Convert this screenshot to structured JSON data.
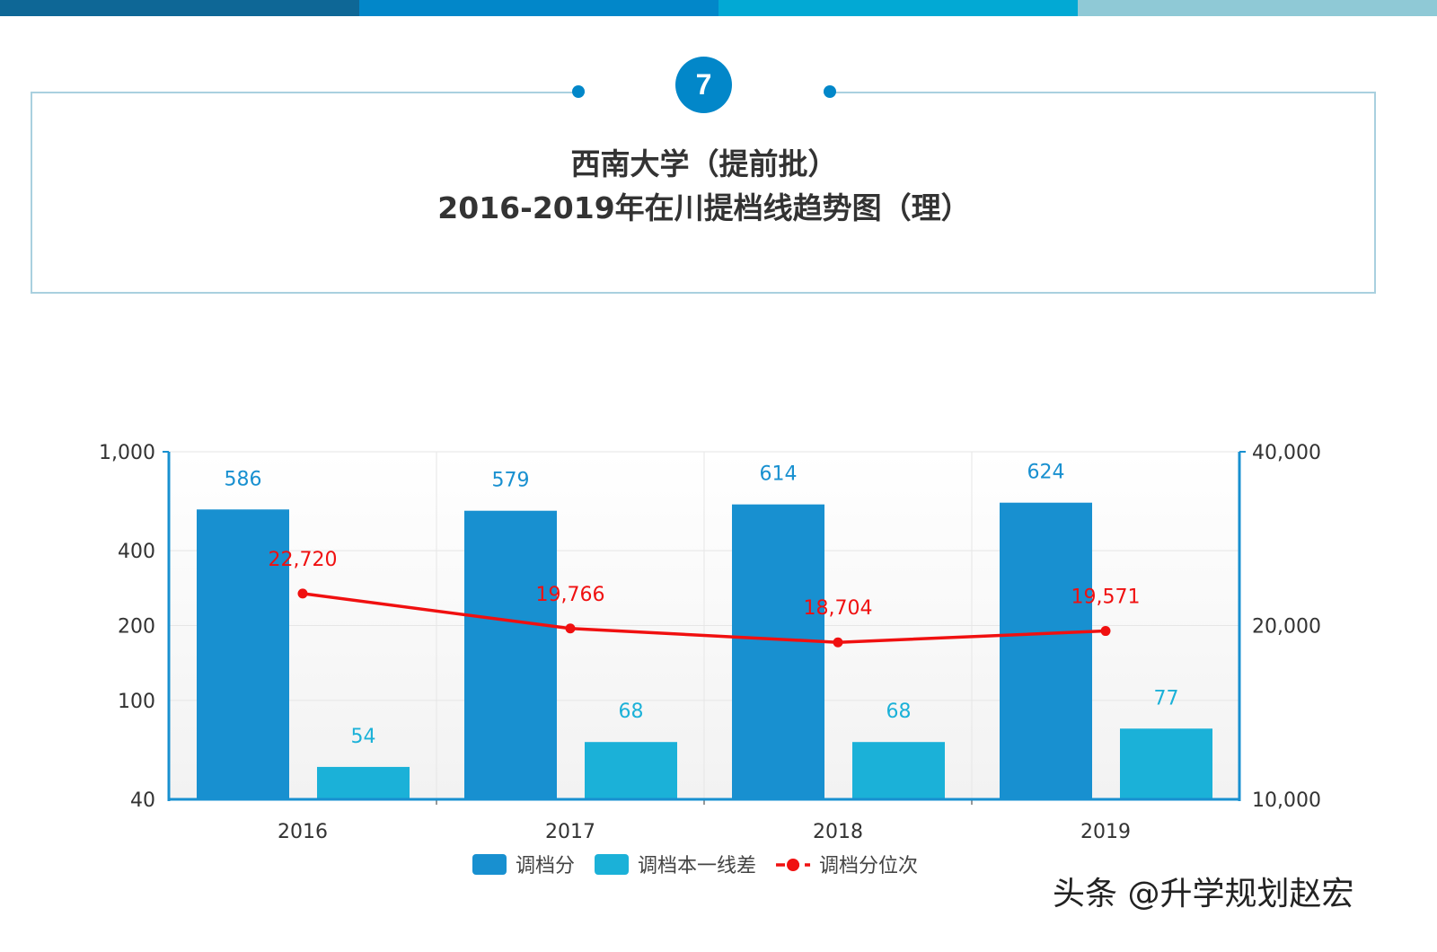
{
  "header": {
    "strip_colors": [
      "#0e6796",
      "#0287c9",
      "#02a9d4",
      "#8fc9d6"
    ],
    "badge": "7",
    "title_line1": "西南大学（提前批）",
    "title_line2": "2016-2019年在川提档线趋势图（理）"
  },
  "watermark": "头条 @升学规划赵宏",
  "chart_data": {
    "type": "bar",
    "categories": [
      "2016",
      "2017",
      "2018",
      "2019"
    ],
    "left_axis": {
      "scale": "log",
      "ylim": [
        40,
        1000
      ],
      "ticks": [
        40,
        100,
        200,
        400,
        1000
      ],
      "tick_labels": [
        "40",
        "100",
        "200",
        "400",
        "1,000"
      ]
    },
    "right_axis": {
      "scale": "log",
      "ylim": [
        10000,
        40000
      ],
      "ticks": [
        10000,
        20000,
        40000
      ],
      "tick_labels": [
        "10,000",
        "20,000",
        "40,000"
      ]
    },
    "series": [
      {
        "name": "调档分",
        "type": "bar",
        "axis": "left",
        "color": "#1890d0",
        "values": [
          586,
          579,
          614,
          624
        ],
        "labels": [
          "586",
          "579",
          "614",
          "624"
        ]
      },
      {
        "name": "调档本一线差",
        "type": "bar",
        "axis": "left",
        "color": "#1bb1d8",
        "values": [
          54,
          68,
          68,
          77
        ],
        "labels": [
          "54",
          "68",
          "68",
          "77"
        ]
      },
      {
        "name": "调档分位次",
        "type": "line",
        "axis": "right",
        "color": "#f01010",
        "values": [
          22720,
          19766,
          18704,
          19571
        ],
        "labels": [
          "22,720",
          "19,766",
          "18,704",
          "19,571"
        ]
      }
    ],
    "grid": true,
    "legend_placement": "bottom"
  }
}
